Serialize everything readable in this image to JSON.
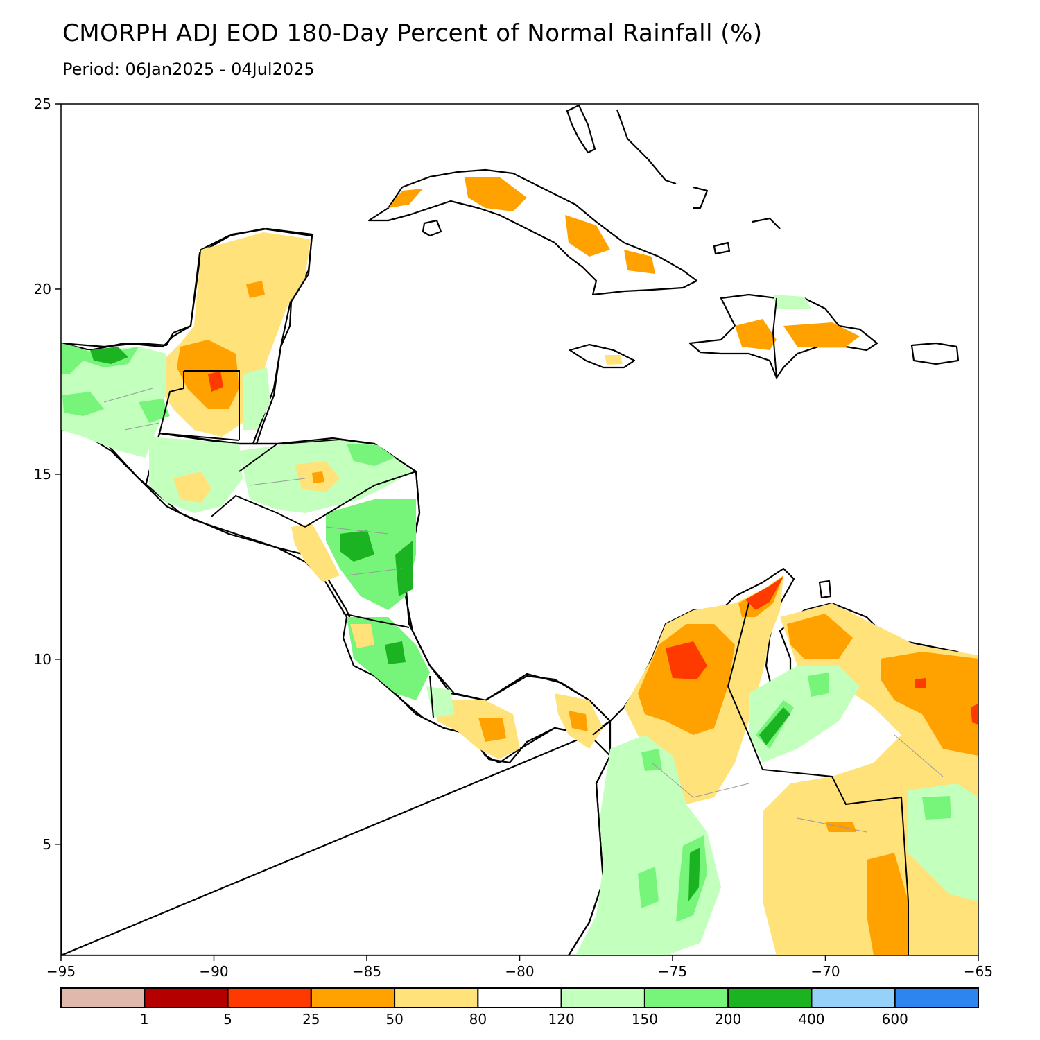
{
  "title": "CMORPH ADJ EOD 180-Day Percent of Normal Rainfall (%)",
  "subtitle": "Period: 06Jan2025 - 04Jul2025",
  "axes": {
    "x_ticks": [
      -95,
      -90,
      -85,
      -80,
      -75,
      -70,
      -65
    ],
    "x_tick_labels": [
      "−95",
      "−90",
      "−85",
      "−80",
      "−75",
      "−70",
      "−65"
    ],
    "y_ticks": [
      25,
      20,
      15,
      10,
      5
    ],
    "y_tick_labels": [
      "25",
      "20",
      "15",
      "10",
      "5"
    ],
    "xlim": [
      -95,
      -65
    ],
    "ylim": [
      2,
      25
    ]
  },
  "colorbar": {
    "colors": [
      "#e0b8ac",
      "#b50000",
      "#ff3a00",
      "#ffa200",
      "#ffe27a",
      "#ffffff",
      "#c3ffbd",
      "#77f57a",
      "#1bb322",
      "#96d1fa",
      "#2d86f0"
    ],
    "labels": [
      "1",
      "5",
      "25",
      "50",
      "80",
      "120",
      "150",
      "200",
      "400",
      "600"
    ]
  },
  "palette": {
    "c80": "#ffe27a",
    "c50": "#ffa200",
    "c25": "#ff3a00",
    "c150": "#c3ffbd",
    "c200": "#77f57a",
    "c400": "#1bb322"
  }
}
